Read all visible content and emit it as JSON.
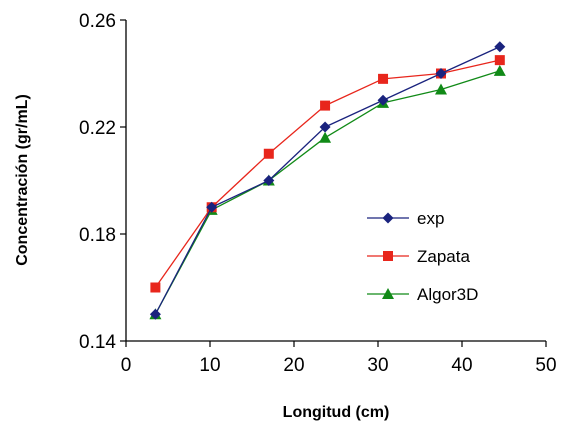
{
  "chart_data": {
    "type": "line",
    "xlabel": "Longitud (cm)",
    "ylabel": "Concentración (gr/mL)",
    "xlim": [
      0,
      50
    ],
    "ylim": [
      0.14,
      0.26
    ],
    "x_ticks": [
      0,
      10,
      20,
      30,
      40,
      50
    ],
    "y_ticks": [
      0.14,
      0.18,
      0.22,
      0.26
    ],
    "y_tick_labels": [
      "0.14",
      "0.18",
      "0.22",
      "0.26"
    ],
    "grid": false,
    "legend_position": "right",
    "series": [
      {
        "name": "exp",
        "color": "#1a237e",
        "marker": "diamond",
        "x": [
          3.5,
          10.2,
          17,
          23.7,
          30.6,
          37.5,
          44.5
        ],
        "y": [
          0.15,
          0.19,
          0.2,
          0.22,
          0.23,
          0.24,
          0.25
        ]
      },
      {
        "name": "Zapata",
        "color": "#e8261c",
        "marker": "square",
        "x": [
          3.5,
          10.2,
          17,
          23.7,
          30.6,
          37.5,
          44.5
        ],
        "y": [
          0.16,
          0.19,
          0.21,
          0.228,
          0.238,
          0.24,
          0.245
        ]
      },
      {
        "name": "Algor3D",
        "color": "#118a17",
        "marker": "triangle",
        "x": [
          3.5,
          10.2,
          17,
          23.7,
          30.6,
          37.5,
          44.5
        ],
        "y": [
          0.15,
          0.189,
          0.2,
          0.216,
          0.229,
          0.234,
          0.241
        ]
      }
    ]
  }
}
